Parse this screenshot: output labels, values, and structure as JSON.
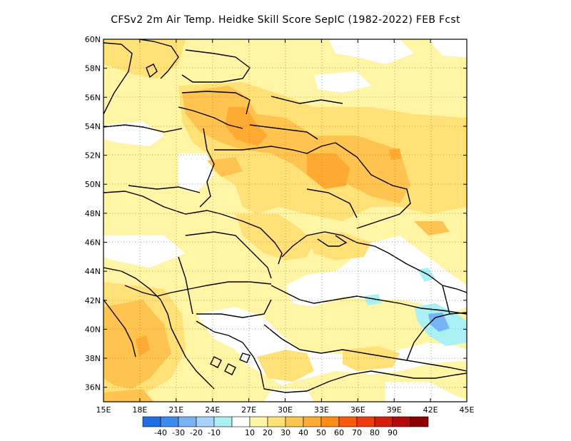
{
  "title": "CFSv2  2m Air Temp. Heidke Skill Score SepIC (1982-2022) FEB Fcst",
  "map": {
    "lon_range": [
      15,
      45
    ],
    "lat_range": [
      35,
      60
    ],
    "lon_ticks": [
      "15E",
      "18E",
      "21E",
      "24E",
      "27E",
      "30E",
      "33E",
      "36E",
      "39E",
      "42E",
      "45E"
    ],
    "lat_ticks": [
      "36N",
      "38N",
      "40N",
      "42N",
      "44N",
      "46N",
      "48N",
      "50N",
      "52N",
      "54N",
      "56N",
      "58N",
      "60N"
    ],
    "grid": true
  },
  "colorbar": {
    "colors": [
      "#1e6ee6",
      "#3c8cf0",
      "#78b4f5",
      "#aad2fa",
      "#aaf0f5",
      "#ffffff",
      "#fff5a5",
      "#ffe178",
      "#ffc350",
      "#ffaa32",
      "#ff8c14",
      "#ff5a0a",
      "#f03c0a",
      "#d21e0a",
      "#b40a0a",
      "#8c0000"
    ],
    "labels": [
      "-40",
      "-30",
      "-20",
      "-10",
      "10",
      "20",
      "30",
      "40",
      "50",
      "60",
      "70",
      "80",
      "90"
    ]
  },
  "legend_colors": {
    "white": "#ffffff",
    "pale_yellow": "#fff5a5",
    "light_orange": "#ffe178",
    "orange": "#ffc350",
    "dark_orange": "#ffaa32",
    "deep_orange": "#ff8c14",
    "light_blue": "#aaf0f5",
    "blue": "#78b4f5"
  }
}
